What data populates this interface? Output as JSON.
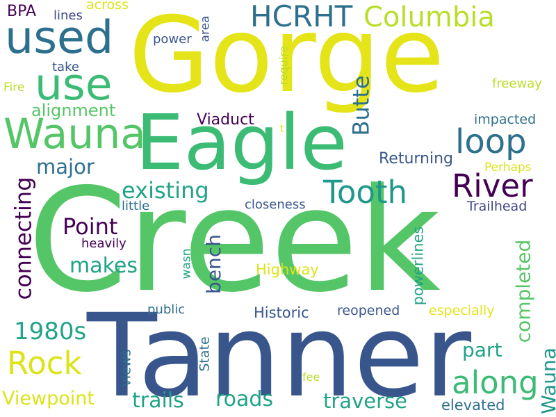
{
  "words": [
    {
      "text": "Creek",
      "color": "#55c667",
      "rotated": false
    },
    {
      "text": "Tanner",
      "color": "#39568c",
      "rotated": false
    },
    {
      "text": "Gorge",
      "color": "#e5e419",
      "rotated": false
    },
    {
      "text": "Eagle",
      "color": "#3cbb75",
      "rotated": false
    },
    {
      "text": "HCRHT",
      "color": "#2d708e",
      "rotated": false
    },
    {
      "text": "Columbia",
      "color": "#b8de29",
      "rotated": false
    },
    {
      "text": "used",
      "color": "#2d708e",
      "rotated": false
    },
    {
      "text": "use",
      "color": "#3cbb75",
      "rotated": false
    },
    {
      "text": "Wauna",
      "color": "#55c667",
      "rotated": false
    },
    {
      "text": "Tooth",
      "color": "#1f988b",
      "rotated": false
    },
    {
      "text": "River",
      "color": "#440154",
      "rotated": false
    },
    {
      "text": "loop",
      "color": "#2d708e",
      "rotated": false
    },
    {
      "text": "Rock",
      "color": "#dce319",
      "rotated": false
    },
    {
      "text": "along",
      "color": "#3cbb75",
      "rotated": false
    },
    {
      "text": "existing",
      "color": "#20a386",
      "rotated": false
    },
    {
      "text": "Point",
      "color": "#440154",
      "rotated": false
    },
    {
      "text": "makes",
      "color": "#20a386",
      "rotated": false
    },
    {
      "text": "1980s",
      "color": "#20a386",
      "rotated": false
    },
    {
      "text": "major",
      "color": "#2d708e",
      "rotated": false
    },
    {
      "text": "traversе",
      "color": "#20a386",
      "rotated": false
    },
    {
      "text": "trails",
      "color": "#20a386",
      "rotated": false
    },
    {
      "text": "roads",
      "color": "#20a386",
      "rotated": false
    },
    {
      "text": "Viewpoint",
      "color": "#dce319",
      "rotated": false
    },
    {
      "text": "alignment",
      "color": "#55c667",
      "rotated": false
    },
    {
      "text": "Viaduct",
      "color": "#440154",
      "rotated": false
    },
    {
      "text": "Returning",
      "color": "#39568c",
      "rotated": false
    },
    {
      "text": "Highway",
      "color": "#dce319",
      "rotated": false
    },
    {
      "text": "Historic",
      "color": "#39568c",
      "rotated": false
    },
    {
      "text": "reopened",
      "color": "#39568c",
      "rotated": false
    },
    {
      "text": "especially",
      "color": "#e5e419",
      "rotated": false
    },
    {
      "text": "elevated",
      "color": "#2d708e",
      "rotated": false
    },
    {
      "text": "part",
      "color": "#20a386",
      "rotated": false
    },
    {
      "text": "impacted",
      "color": "#2d708e",
      "rotated": false
    },
    {
      "text": "freeway",
      "color": "#b8de29",
      "rotated": false
    },
    {
      "text": "Perhaps",
      "color": "#dce319",
      "rotated": false
    },
    {
      "text": "Trailhead",
      "color": "#3f4788",
      "rotated": false
    },
    {
      "text": "closeness",
      "color": "#39568c",
      "rotated": false
    },
    {
      "text": "little",
      "color": "#2d708e",
      "rotated": false
    },
    {
      "text": "heavily",
      "color": "#440154",
      "rotated": false
    },
    {
      "text": "public",
      "color": "#2d708e",
      "rotated": false
    },
    {
      "text": "power",
      "color": "#39568c",
      "rotated": false
    },
    {
      "text": "take",
      "color": "#39568c",
      "rotated": false
    },
    {
      "text": "lines",
      "color": "#3f4788",
      "rotated": false
    },
    {
      "text": "across",
      "color": "#dce319",
      "rotated": false
    },
    {
      "text": "BPA",
      "color": "#440154",
      "rotated": false
    },
    {
      "text": "Fire",
      "color": "#b8de29",
      "rotated": false
    },
    {
      "text": "fee",
      "color": "#b8de29",
      "rotated": false
    },
    {
      "text": "t",
      "color": "#e5e419",
      "rotated": false
    },
    {
      "text": "connecting",
      "color": "#440154",
      "rotated": true
    },
    {
      "text": "Butte",
      "color": "#2d708e",
      "rotated": true
    },
    {
      "text": "bench",
      "color": "#39568c",
      "rotated": true
    },
    {
      "text": "completed",
      "color": "#55c667",
      "rotated": true
    },
    {
      "text": "powerlines",
      "color": "#20a386",
      "rotated": true
    },
    {
      "text": "views",
      "color": "#2d708e",
      "rotated": true
    },
    {
      "text": "State",
      "color": "#2d708e",
      "rotated": true
    },
    {
      "text": "wasn",
      "color": "#20a386",
      "rotated": true
    },
    {
      "text": "area",
      "color": "#39568c",
      "rotated": true
    },
    {
      "text": "require",
      "color": "#b8de29",
      "rotated": true
    },
    {
      "text": "Wauna",
      "color": "#1f988b",
      "rotated": true
    }
  ]
}
